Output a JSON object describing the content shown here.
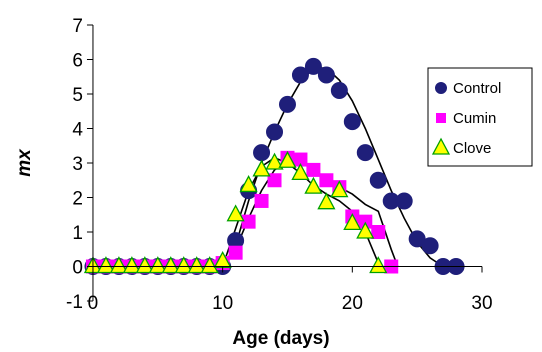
{
  "chart_data": {
    "type": "scatter",
    "title": "",
    "xlabel": "Age (days)",
    "ylabel": "mx",
    "xlim": [
      -1,
      30
    ],
    "ylim": [
      -1,
      7
    ],
    "x_ticks": [
      "0",
      "10",
      "20",
      "30"
    ],
    "y_ticks": [
      "-1",
      "0",
      "1",
      "2",
      "3",
      "4",
      "5",
      "6",
      "7"
    ],
    "grid": false,
    "legend_position": "right",
    "series": [
      {
        "name": "Control",
        "marker": "circle",
        "color": "#1f1f7a",
        "points": [
          [
            0,
            0
          ],
          [
            1,
            0
          ],
          [
            2,
            0
          ],
          [
            3,
            0
          ],
          [
            4,
            0
          ],
          [
            5,
            0
          ],
          [
            6,
            0
          ],
          [
            7,
            0
          ],
          [
            8,
            0
          ],
          [
            9,
            0
          ],
          [
            10,
            0
          ],
          [
            11,
            0.75
          ],
          [
            12,
            2.2
          ],
          [
            13,
            3.3
          ],
          [
            14,
            3.9
          ],
          [
            15,
            4.7
          ],
          [
            16,
            5.55
          ],
          [
            17,
            5.8
          ],
          [
            18,
            5.55
          ],
          [
            19,
            5.1
          ],
          [
            20,
            4.2
          ],
          [
            21,
            3.3
          ],
          [
            22,
            2.5
          ],
          [
            23,
            1.9
          ],
          [
            24,
            1.9
          ],
          [
            25,
            0.8
          ],
          [
            26,
            0.6
          ],
          [
            27,
            0
          ],
          [
            28,
            0
          ]
        ],
        "trend": [
          [
            0,
            0
          ],
          [
            10,
            0
          ],
          [
            11,
            0.6
          ],
          [
            12,
            1.9
          ],
          [
            13,
            3.0
          ],
          [
            14,
            3.9
          ],
          [
            15,
            4.7
          ],
          [
            16,
            5.35
          ],
          [
            17,
            5.75
          ],
          [
            18,
            5.75
          ],
          [
            19,
            5.4
          ],
          [
            20,
            4.8
          ],
          [
            21,
            4.0
          ],
          [
            22,
            3.1
          ],
          [
            23,
            2.2
          ],
          [
            24,
            1.4
          ],
          [
            25,
            0.7
          ],
          [
            26,
            0.25
          ],
          [
            27,
            0
          ],
          [
            28,
            0
          ]
        ]
      },
      {
        "name": "Cumin",
        "marker": "square",
        "color": "#ff00ff",
        "points": [
          [
            0,
            0
          ],
          [
            1,
            0
          ],
          [
            2,
            0
          ],
          [
            3,
            0
          ],
          [
            4,
            0
          ],
          [
            5,
            0
          ],
          [
            6,
            0
          ],
          [
            7,
            0
          ],
          [
            8,
            0
          ],
          [
            9,
            0
          ],
          [
            10,
            0.1
          ],
          [
            11,
            0.4
          ],
          [
            12,
            1.3
          ],
          [
            13,
            1.9
          ],
          [
            14,
            2.5
          ],
          [
            15,
            3.15
          ],
          [
            16,
            3.1
          ],
          [
            17,
            2.8
          ],
          [
            18,
            2.5
          ],
          [
            19,
            2.3
          ],
          [
            20,
            1.45
          ],
          [
            21,
            1.3
          ],
          [
            22,
            1.0
          ],
          [
            23,
            0
          ]
        ],
        "trend": [
          [
            0,
            0
          ],
          [
            10,
            0
          ],
          [
            11,
            0.5
          ],
          [
            12,
            1.4
          ],
          [
            13,
            2.2
          ],
          [
            14,
            2.8
          ],
          [
            15,
            3.05
          ],
          [
            16,
            3.1
          ],
          [
            17,
            2.8
          ],
          [
            18,
            2.45
          ],
          [
            19,
            2.3
          ],
          [
            20,
            2.1
          ],
          [
            21,
            1.8
          ],
          [
            22,
            1.6
          ],
          [
            23,
            0.5
          ],
          [
            23.5,
            0
          ]
        ]
      },
      {
        "name": "Clove",
        "marker": "triangle",
        "color": "#ffff00",
        "stroke": "#00a000",
        "points": [
          [
            0,
            0
          ],
          [
            1,
            0
          ],
          [
            2,
            0
          ],
          [
            3,
            0
          ],
          [
            4,
            0
          ],
          [
            5,
            0
          ],
          [
            6,
            0
          ],
          [
            7,
            0
          ],
          [
            8,
            0
          ],
          [
            9,
            0
          ],
          [
            10,
            0.15
          ],
          [
            11,
            1.5
          ],
          [
            12,
            2.35
          ],
          [
            13,
            2.8
          ],
          [
            14,
            3.0
          ],
          [
            15,
            3.05
          ],
          [
            16,
            2.7
          ],
          [
            17,
            2.3
          ],
          [
            18,
            1.85
          ],
          [
            19,
            2.2
          ],
          [
            20,
            1.25
          ],
          [
            21,
            1.0
          ],
          [
            22,
            0
          ]
        ],
        "trend": [
          [
            0,
            0
          ],
          [
            10,
            0
          ],
          [
            11,
            1.1
          ],
          [
            12,
            2.2
          ],
          [
            13,
            2.9
          ],
          [
            14,
            3.15
          ],
          [
            15,
            3.0
          ],
          [
            16,
            2.7
          ],
          [
            17,
            2.35
          ],
          [
            18,
            2.1
          ],
          [
            19,
            1.9
          ],
          [
            20,
            1.6
          ],
          [
            21,
            1.0
          ],
          [
            22,
            0.1
          ],
          [
            22.2,
            0
          ]
        ]
      }
    ]
  }
}
